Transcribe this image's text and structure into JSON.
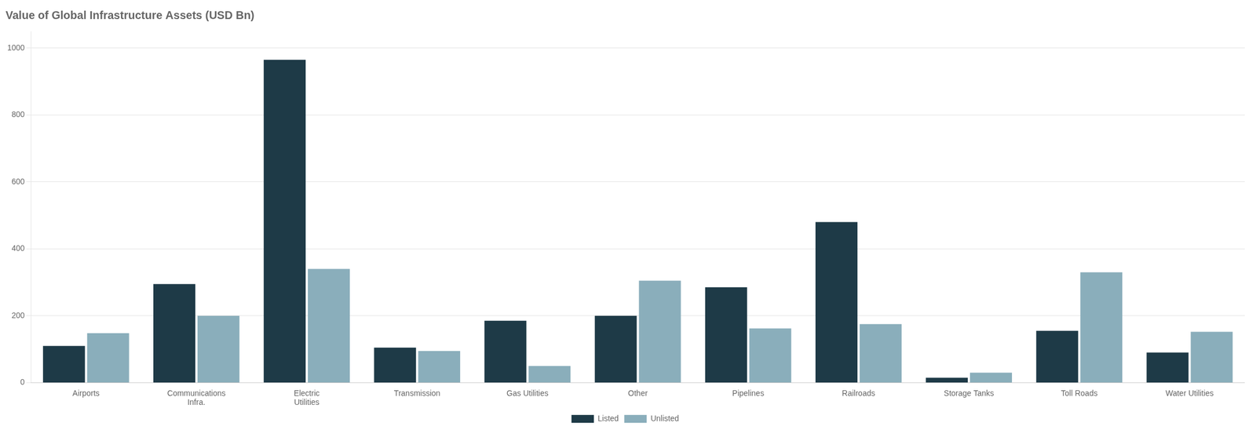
{
  "chart_data": {
    "type": "bar",
    "title": "Value of Global Infrastructure Assets (USD Bn)",
    "categories": [
      "Airports",
      "Communications\nInfra.",
      "Electric\nUtilities",
      "Transmission",
      "Gas Utilities",
      "Other",
      "Pipelines",
      "Railroads",
      "Storage Tanks",
      "Toll Roads",
      "Water Utilities"
    ],
    "series": [
      {
        "name": "Listed",
        "color": "#1e3a47",
        "values": [
          110,
          295,
          965,
          105,
          185,
          200,
          285,
          480,
          15,
          155,
          90
        ]
      },
      {
        "name": "Unlisted",
        "color": "#8aaebb",
        "values": [
          148,
          200,
          340,
          95,
          50,
          305,
          162,
          175,
          30,
          330,
          152
        ]
      }
    ],
    "ylim": [
      0,
      1050
    ],
    "yticks": [
      0,
      200,
      400,
      600,
      800,
      1000
    ],
    "grid": true,
    "legend": "bottom"
  }
}
